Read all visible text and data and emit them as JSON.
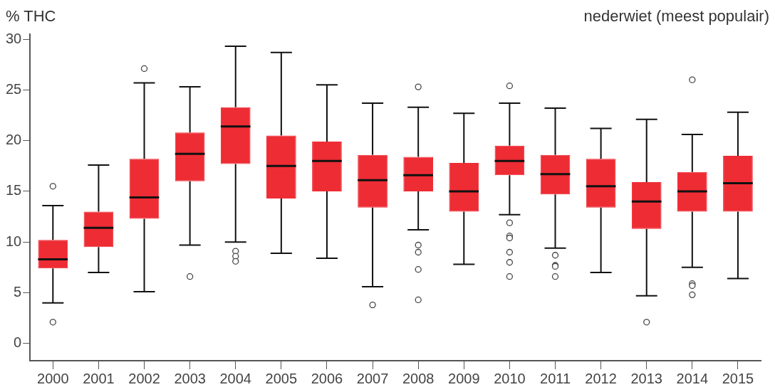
{
  "chart_data": {
    "type": "box",
    "title": "nederwiet (meest populair)",
    "ylabel": "% THC",
    "categories": [
      "2000",
      "2001",
      "2002",
      "2003",
      "2004",
      "2005",
      "2006",
      "2007",
      "2008",
      "2009",
      "2010",
      "2011",
      "2012",
      "2013",
      "2014",
      "2015"
    ],
    "color": "#ee2c34",
    "boxes": [
      {
        "low": 4.0,
        "q1": 7.4,
        "median": 8.3,
        "q3": 10.2,
        "high": 13.6,
        "outliers": [
          15.5,
          2.1
        ]
      },
      {
        "low": 7.0,
        "q1": 9.5,
        "median": 11.4,
        "q3": 13.0,
        "high": 17.6
      },
      {
        "low": 5.1,
        "q1": 12.3,
        "median": 14.4,
        "q3": 18.2,
        "high": 25.7,
        "outliers": [
          27.1
        ]
      },
      {
        "low": 9.7,
        "q1": 16.0,
        "median": 18.7,
        "q3": 20.8,
        "high": 25.3,
        "outliers": [
          6.6
        ]
      },
      {
        "low": 10.0,
        "q1": 17.7,
        "median": 21.4,
        "q3": 23.3,
        "high": 29.3,
        "outliers": [
          9.1,
          8.6,
          8.1
        ]
      },
      {
        "low": 8.9,
        "q1": 14.3,
        "median": 17.5,
        "q3": 20.5,
        "high": 28.7
      },
      {
        "low": 8.4,
        "q1": 15.0,
        "median": 18.0,
        "q3": 19.9,
        "high": 25.5
      },
      {
        "low": 5.6,
        "q1": 13.4,
        "median": 16.1,
        "q3": 18.6,
        "high": 23.7,
        "outliers": [
          3.8
        ]
      },
      {
        "low": 11.2,
        "q1": 15.0,
        "median": 16.6,
        "q3": 18.4,
        "high": 23.3,
        "outliers": [
          25.3,
          9.7,
          9.0,
          7.3,
          4.3
        ]
      },
      {
        "low": 7.8,
        "q1": 13.0,
        "median": 15.0,
        "q3": 17.8,
        "high": 22.7
      },
      {
        "low": 12.7,
        "q1": 16.6,
        "median": 18.0,
        "q3": 19.5,
        "high": 23.7,
        "outliers": [
          25.4,
          11.9,
          10.6,
          10.4,
          9.0,
          8.0,
          6.6
        ]
      },
      {
        "low": 9.4,
        "q1": 14.7,
        "median": 16.7,
        "q3": 18.6,
        "high": 23.2,
        "outliers": [
          8.7,
          7.7,
          7.6,
          6.6
        ]
      },
      {
        "low": 7.0,
        "q1": 13.4,
        "median": 15.5,
        "q3": 18.2,
        "high": 21.2
      },
      {
        "low": 4.7,
        "q1": 11.3,
        "median": 14.0,
        "q3": 15.9,
        "high": 22.1,
        "outliers": [
          2.1
        ]
      },
      {
        "low": 7.5,
        "q1": 13.0,
        "median": 15.0,
        "q3": 16.9,
        "high": 20.6,
        "outliers": [
          26.0,
          5.9,
          5.7,
          4.8
        ]
      },
      {
        "low": 6.4,
        "q1": 13.0,
        "median": 15.8,
        "q3": 18.5,
        "high": 22.8
      }
    ],
    "ylim": [
      -1.7,
      30.5
    ],
    "yticks": [
      0,
      5,
      10,
      15,
      20,
      25,
      30
    ],
    "grid": false,
    "legend": false
  }
}
